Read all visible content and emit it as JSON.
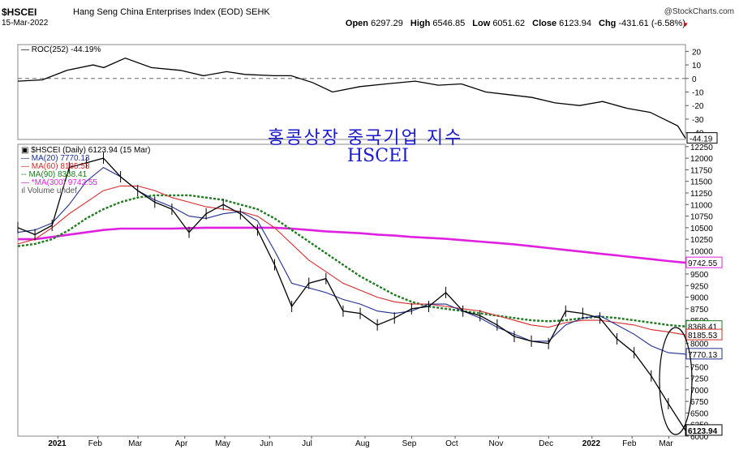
{
  "header": {
    "symbol": "$HSCEI",
    "name": "Hang Seng China Enterprises Index (EOD) SEHK",
    "date": "15-Mar-2022",
    "credit": "@StockCharts.com",
    "open_label": "Open",
    "open": "6297.29",
    "high_label": "High",
    "high": "6546.85",
    "low_label": "Low",
    "low": "6051.62",
    "close_label": "Close",
    "close": "6123.94",
    "chg_label": "Chg",
    "chg": "-431.61 (-6.58%)"
  },
  "annotation": {
    "korean": "홍콩상장 중국기업 지수",
    "title": "HSCEI"
  },
  "colors": {
    "price": "#000000",
    "ma20": "#1f2f8f",
    "ma60": "#d62a2a",
    "ma90": "#1d7a1d",
    "ma300": "#e020e0",
    "circle": "#000000"
  },
  "chart_data": [
    {
      "type": "line",
      "name": "ROC(252) -44.19%",
      "legend": "ROC(252) -44.19%",
      "x": [
        "2021-01-04",
        "2021-01-20",
        "2021-02-05",
        "2021-02-22",
        "2021-03-01",
        "2021-03-15",
        "2021-04-01",
        "2021-04-20",
        "2021-05-05",
        "2021-05-20",
        "2021-06-01",
        "2021-06-20",
        "2021-07-01",
        "2021-07-15",
        "2021-07-28",
        "2021-08-15",
        "2021-09-01",
        "2021-09-20",
        "2021-10-05",
        "2021-10-20",
        "2021-11-05",
        "2021-11-20",
        "2021-12-05",
        "2021-12-20",
        "2022-01-05",
        "2022-01-20",
        "2022-02-05",
        "2022-02-20",
        "2022-03-01",
        "2022-03-10",
        "2022-03-15"
      ],
      "y": [
        -2,
        -1,
        6,
        10,
        8,
        15,
        8,
        6,
        2,
        5,
        3,
        2,
        2,
        -3,
        -10,
        -6,
        -4,
        -2,
        -5,
        -4,
        -10,
        -12,
        -14,
        -18,
        -20,
        -17,
        -22,
        -25,
        -30,
        -35,
        -44.19
      ],
      "last_value": "-44.19",
      "yticks": [
        "20",
        "10",
        "0",
        "-10",
        "-20",
        "-30",
        "-40"
      ],
      "ylim": [
        -45,
        25
      ]
    },
    {
      "type": "line",
      "name": "$HSCEI (Daily) 6123.94 (15 Mar)",
      "legend": [
        "$HSCEI (Daily) 6123.94 (15 Mar)",
        "MA(20) 7770.13",
        "MA(60) 8185.53",
        "MA(90) 8368.41",
        "*MA(300) 9742.55",
        "Volume undef"
      ],
      "xlabels": [
        "2021",
        "Feb",
        "Mar",
        "Apr",
        "May",
        "Jun",
        "Jul",
        "Aug",
        "Sep",
        "Oct",
        "Nov",
        "Dec",
        "2022",
        "Feb",
        "Mar"
      ],
      "yticks": [
        "12250",
        "12000",
        "11750",
        "11500",
        "11250",
        "11000",
        "10750",
        "10500",
        "10250",
        "10000",
        "9750",
        "9500",
        "9250",
        "9000",
        "8750",
        "8500",
        "8250",
        "8000",
        "7750",
        "7500",
        "7250",
        "7000",
        "6750",
        "6500",
        "6250",
        "6000"
      ],
      "ylim": [
        6000,
        12300
      ],
      "series": [
        {
          "name": "$HSCEI",
          "values": [
            10500,
            10350,
            10550,
            11800,
            11900,
            12000,
            11600,
            11300,
            11050,
            10900,
            10400,
            10800,
            11000,
            10800,
            10450,
            9700,
            8800,
            9300,
            9400,
            8700,
            8650,
            8400,
            8550,
            8750,
            8800,
            9100,
            8700,
            8600,
            8400,
            8150,
            8050,
            8000,
            8700,
            8650,
            8550,
            8100,
            7800,
            7300,
            6700,
            6123.94
          ]
        },
        {
          "name": "MA(20)",
          "values": [
            10400,
            10450,
            10600,
            11000,
            11500,
            11800,
            11600,
            11300,
            11100,
            10950,
            10750,
            10700,
            10800,
            10850,
            10650,
            10000,
            9300,
            9200,
            9100,
            8950,
            8850,
            8700,
            8650,
            8700,
            8850,
            8850,
            8700,
            8550,
            8350,
            8200,
            8050,
            8050,
            8400,
            8550,
            8600,
            8400,
            8200,
            7950,
            7800,
            7770.13
          ]
        },
        {
          "name": "MA(60)",
          "values": [
            10150,
            10250,
            10500,
            10800,
            11050,
            11300,
            11400,
            11400,
            11300,
            11150,
            11050,
            10950,
            10900,
            10850,
            10750,
            10500,
            10150,
            9800,
            9550,
            9300,
            9150,
            9000,
            8900,
            8850,
            8850,
            8800,
            8750,
            8700,
            8600,
            8500,
            8400,
            8350,
            8450,
            8500,
            8500,
            8450,
            8400,
            8300,
            8250,
            8185.53
          ]
        },
        {
          "name": "MA(90)",
          "values": [
            10100,
            10150,
            10250,
            10450,
            10700,
            10900,
            11050,
            11150,
            11200,
            11200,
            11200,
            11150,
            11100,
            11000,
            10900,
            10700,
            10450,
            10200,
            9950,
            9700,
            9450,
            9250,
            9050,
            8900,
            8800,
            8750,
            8700,
            8650,
            8600,
            8550,
            8500,
            8480,
            8500,
            8550,
            8580,
            8550,
            8500,
            8450,
            8400,
            8368.41
          ]
        },
        {
          "name": "*MA(300)",
          "values": [
            10250,
            10250,
            10300,
            10350,
            10400,
            10450,
            10480,
            10480,
            10480,
            10480,
            10490,
            10500,
            10500,
            10500,
            10500,
            10500,
            10480,
            10450,
            10420,
            10400,
            10380,
            10350,
            10330,
            10300,
            10280,
            10260,
            10230,
            10200,
            10170,
            10140,
            10100,
            10060,
            10020,
            9980,
            9940,
            9900,
            9860,
            9820,
            9780,
            9742.55
          ]
        }
      ],
      "last_labels": [
        "9742.55",
        "8368.41",
        "8185.53",
        "7770.13",
        "6123.94"
      ]
    }
  ]
}
